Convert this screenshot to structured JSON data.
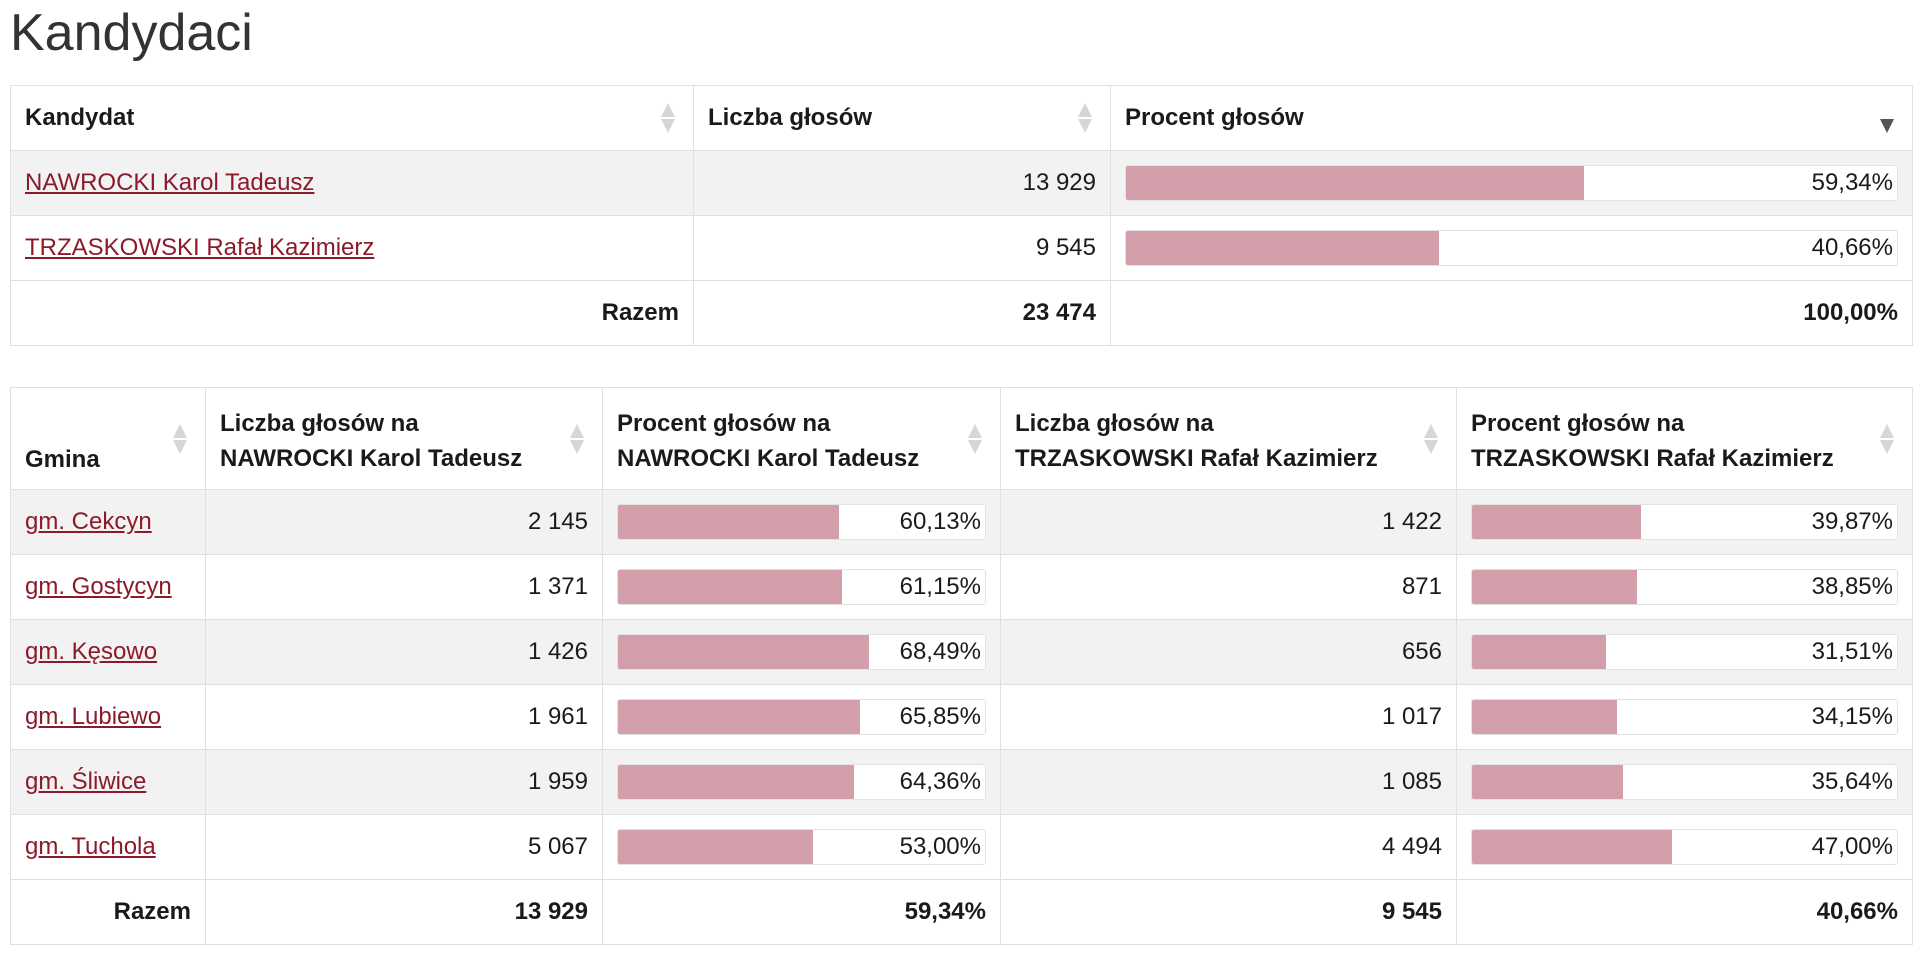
{
  "page": {
    "title": "Kandydaci"
  },
  "candidates_table": {
    "headers": {
      "candidate": "Kandydat",
      "votes": "Liczba głosów",
      "percent": "Procent głosów"
    },
    "rows": [
      {
        "name": "NAWROCKI Karol Tadeusz",
        "votes": "13 929",
        "percent": "59,34%",
        "percent_value": 59.34
      },
      {
        "name": "TRZASKOWSKI Rafał Kazimierz",
        "votes": "9 545",
        "percent": "40,66%",
        "percent_value": 40.66
      }
    ],
    "total": {
      "label": "Razem",
      "votes": "23 474",
      "percent": "100,00%"
    }
  },
  "municipalities_table": {
    "headers": {
      "gmina": "Gmina",
      "votes_a_line1": "Liczba głosów na",
      "votes_a_line2": "NAWROCKI Karol Tadeusz",
      "percent_a_line1": "Procent głosów na",
      "percent_a_line2": "NAWROCKI Karol Tadeusz",
      "votes_b_line1": "Liczba głosów na",
      "votes_b_line2": "TRZASKOWSKI Rafał Kazimierz",
      "percent_b_line1": "Procent głosów na",
      "percent_b_line2": "TRZASKOWSKI Rafał Kazimierz"
    },
    "rows": [
      {
        "gmina": "gm. Cekcyn",
        "votes_a": "2 145",
        "percent_a": "60,13%",
        "pa": 60.13,
        "votes_b": "1 422",
        "percent_b": "39,87%",
        "pb": 39.87
      },
      {
        "gmina": "gm. Gostycyn",
        "votes_a": "1 371",
        "percent_a": "61,15%",
        "pa": 61.15,
        "votes_b": "871",
        "percent_b": "38,85%",
        "pb": 38.85
      },
      {
        "gmina": "gm. Kęsowo",
        "votes_a": "1 426",
        "percent_a": "68,49%",
        "pa": 68.49,
        "votes_b": "656",
        "percent_b": "31,51%",
        "pb": 31.51
      },
      {
        "gmina": "gm. Lubiewo",
        "votes_a": "1 961",
        "percent_a": "65,85%",
        "pa": 65.85,
        "votes_b": "1 017",
        "percent_b": "34,15%",
        "pb": 34.15
      },
      {
        "gmina": "gm. Śliwice",
        "votes_a": "1 959",
        "percent_a": "64,36%",
        "pa": 64.36,
        "votes_b": "1 085",
        "percent_b": "35,64%",
        "pb": 35.64
      },
      {
        "gmina": "gm. Tuchola",
        "votes_a": "5 067",
        "percent_a": "53,00%",
        "pa": 53.0,
        "votes_b": "4 494",
        "percent_b": "47,00%",
        "pb": 47.0
      }
    ],
    "total": {
      "label": "Razem",
      "votes_a": "13 929",
      "percent_a": "59,34%",
      "votes_b": "9 545",
      "percent_b": "40,66%"
    }
  },
  "colors": {
    "link": "#8b1a2b",
    "bar_fill": "#d19ea9",
    "stripe": "#f2f2f2"
  },
  "icons": {
    "sort_neutral": "sort-icon",
    "sort_desc": "sort-desc-icon"
  }
}
